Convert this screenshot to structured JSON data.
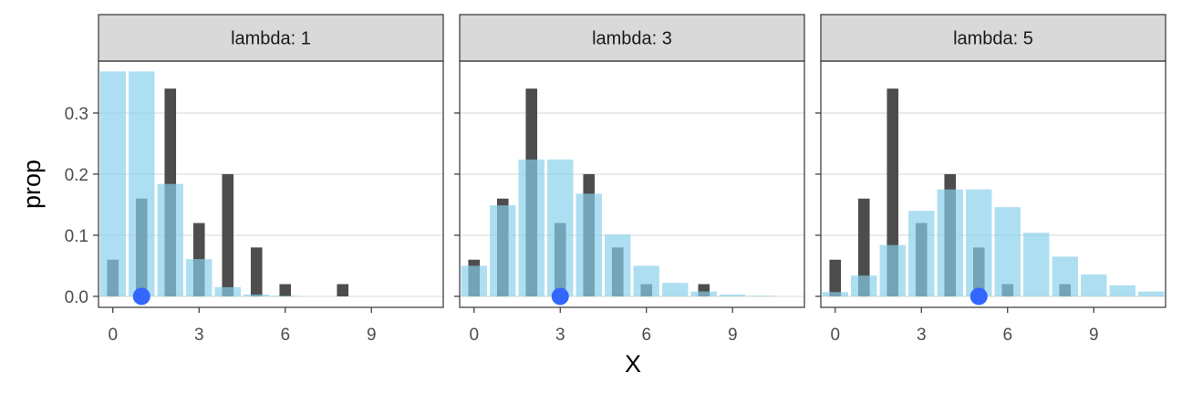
{
  "chart_data": {
    "type": "bar",
    "facet_variable": "lambda",
    "xlabel": "X",
    "ylabel": "prop",
    "xlim": [
      -0.5,
      11.5
    ],
    "ylim": [
      -0.018,
      0.385
    ],
    "x_ticks": [
      0,
      3,
      6,
      9
    ],
    "y_ticks": [
      0.0,
      0.1,
      0.2,
      0.3
    ],
    "y_tick_labels": [
      "0.0",
      "0.1",
      "0.2",
      "0.3"
    ],
    "grid": true,
    "colors": {
      "observed": "#4d4d4d",
      "poisson": "#87ceeb",
      "lambda_point": "#3366ff"
    },
    "observed": {
      "x": [
        0,
        1,
        2,
        3,
        4,
        5,
        6,
        7,
        8
      ],
      "prop": [
        0.06,
        0.16,
        0.34,
        0.12,
        0.2,
        0.08,
        0.02,
        0.0,
        0.02
      ]
    },
    "panels": [
      {
        "strip_label": "lambda: 1",
        "lambda": 1,
        "poisson": {
          "x": [
            0,
            1,
            2,
            3,
            4,
            5,
            6,
            7,
            8,
            9,
            10,
            11
          ],
          "prop": [
            0.368,
            0.368,
            0.184,
            0.061,
            0.015,
            0.003,
            0.001,
            0.0,
            0.0,
            0.0,
            0.0,
            0.0
          ]
        }
      },
      {
        "strip_label": "lambda: 3",
        "lambda": 3,
        "poisson": {
          "x": [
            0,
            1,
            2,
            3,
            4,
            5,
            6,
            7,
            8,
            9,
            10,
            11
          ],
          "prop": [
            0.05,
            0.149,
            0.224,
            0.224,
            0.168,
            0.101,
            0.05,
            0.022,
            0.008,
            0.003,
            0.001,
            0.0
          ]
        }
      },
      {
        "strip_label": "lambda: 5",
        "lambda": 5,
        "poisson": {
          "x": [
            0,
            1,
            2,
            3,
            4,
            5,
            6,
            7,
            8,
            9,
            10,
            11
          ],
          "prop": [
            0.007,
            0.034,
            0.084,
            0.14,
            0.175,
            0.175,
            0.146,
            0.104,
            0.065,
            0.036,
            0.018,
            0.008
          ]
        }
      }
    ]
  }
}
